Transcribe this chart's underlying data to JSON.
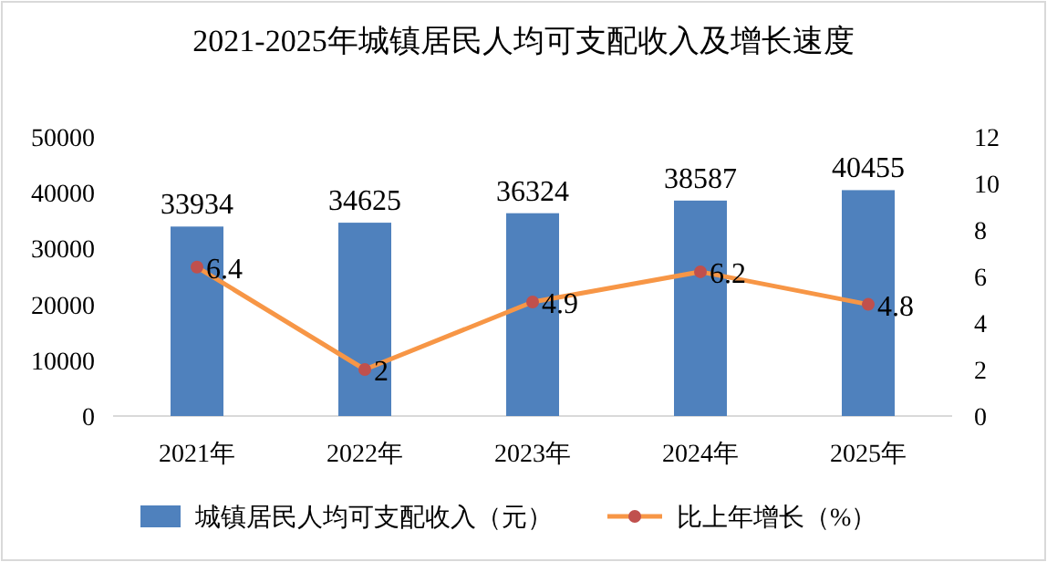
{
  "chart_data": {
    "type": "bar",
    "title": "2021-2025年城镇居民人均可支配收入及增长速度",
    "categories": [
      "2021年",
      "2022年",
      "2023年",
      "2024年",
      "2025年"
    ],
    "series": [
      {
        "name": "城镇居民人均可支配收入（元）",
        "color": "#4f81bd",
        "values": [
          33934,
          34625,
          36324,
          38587,
          40455
        ]
      },
      {
        "name": "比上年增长（%）",
        "type": "line",
        "axis": "y2",
        "color": "#f79646",
        "values": [
          6.4,
          2,
          4.9,
          6.2,
          4.8
        ]
      }
    ],
    "ylim": [
      0,
      50000
    ],
    "yticks": [
      0,
      10000,
      20000,
      30000,
      40000,
      50000
    ],
    "y2lim": [
      0,
      12
    ],
    "y2ticks": [
      0,
      2,
      4,
      6,
      8,
      10,
      12
    ],
    "data_labels": true,
    "legend": "bottom",
    "marker": "circle",
    "grid": false
  }
}
